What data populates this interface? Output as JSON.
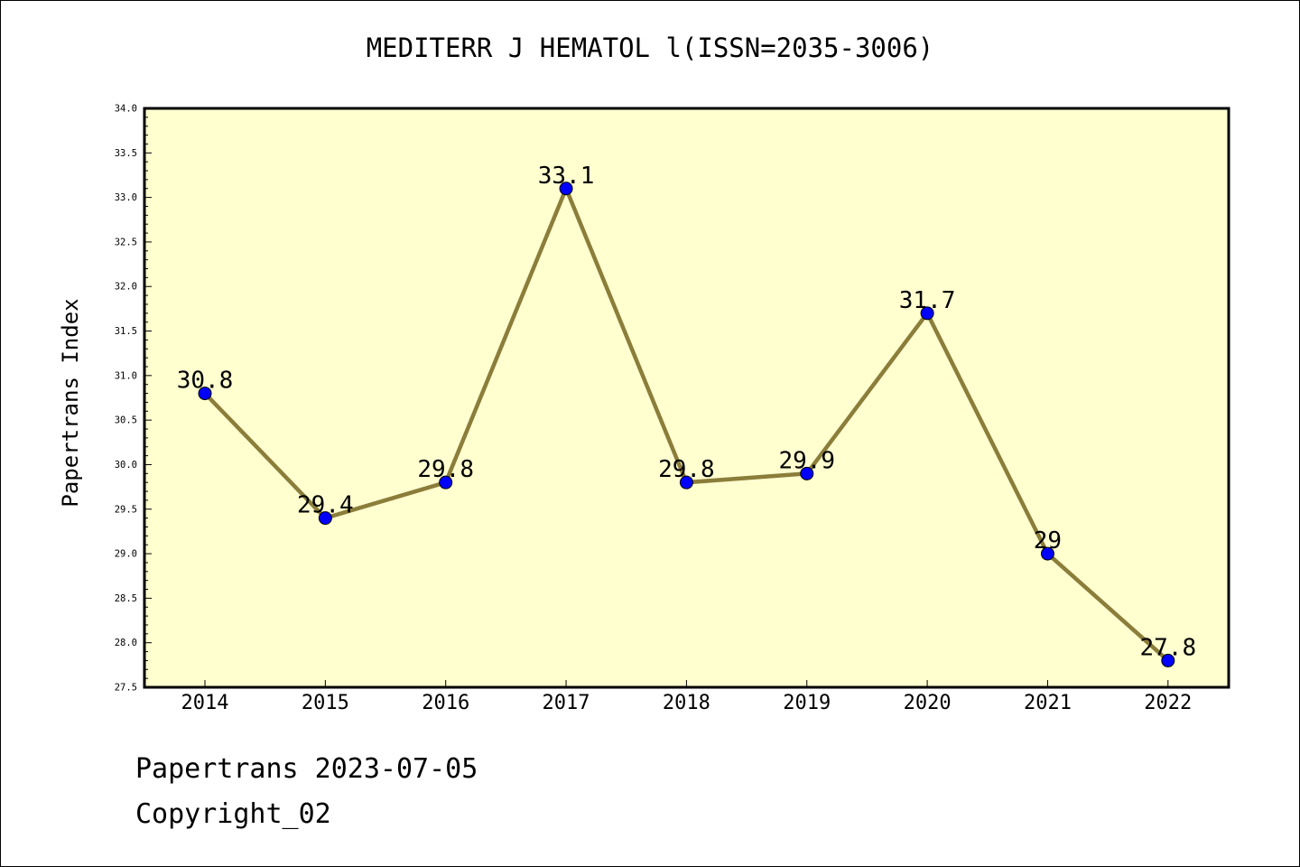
{
  "chart_data": {
    "type": "line",
    "title": "MEDITERR J HEMATOL l(ISSN=2035-3006)",
    "xlabel": "",
    "ylabel": "Papertrans Index",
    "categories": [
      "2014",
      "2015",
      "2016",
      "2017",
      "2018",
      "2019",
      "2020",
      "2021",
      "2022"
    ],
    "values": [
      30.8,
      29.4,
      29.8,
      33.1,
      29.8,
      29.9,
      31.7,
      29,
      27.8
    ],
    "data_labels": [
      "30.8",
      "29.4",
      "29.8",
      "33.1",
      "29.8",
      "29.9",
      "31.7",
      "29",
      "27.8"
    ],
    "ylim": [
      27.5,
      34.0
    ],
    "yticks": [
      "27.5",
      "28.0",
      "28.5",
      "29.0",
      "29.5",
      "30.0",
      "30.5",
      "31.0",
      "31.5",
      "32.0",
      "32.5",
      "33.0",
      "33.5",
      "34.0"
    ],
    "grid": false,
    "legend": "none",
    "colors": {
      "plot_background": "#ffffd0",
      "line": "#8b7d3a",
      "marker": "#0000ff"
    }
  },
  "footer": {
    "line1": "Papertrans 2023-07-05",
    "line2": "Copyright_02"
  }
}
